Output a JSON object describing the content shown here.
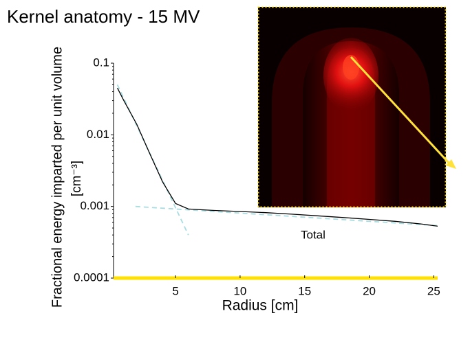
{
  "chart_data": {
    "type": "line",
    "title": "Kernel anatomy  -  15 MV",
    "y_label": "Fractional energy imparted per unit volume",
    "y_unit": "[cm⁻³]",
    "x_label": "Radius  [cm]",
    "log_y": true,
    "xlim": [
      0.2,
      25.3
    ],
    "xticks": [
      5,
      10,
      15,
      20,
      25
    ],
    "ylim": [
      0.0001,
      0.1
    ],
    "yticks": [
      0.1,
      0.01,
      0.001,
      0.0001
    ],
    "series": [
      {
        "name": "Total",
        "color": "#000000",
        "x": [
          0.5,
          1,
          2,
          3,
          4,
          5,
          6,
          8,
          10,
          12,
          14,
          16,
          18,
          20,
          22,
          24,
          25.3
        ],
        "values": [
          0.045,
          0.03,
          0.014,
          0.0055,
          0.0022,
          0.0011,
          0.00092,
          0.00088,
          0.00085,
          0.00082,
          0.00078,
          0.00074,
          0.0007,
          0.00066,
          0.00062,
          0.00057,
          0.00053
        ]
      },
      {
        "color": "#a8dce0",
        "dashed": true,
        "x": [
          0.5,
          6
        ],
        "values": [
          0.05,
          0.0004
        ]
      },
      {
        "color": "#a8dce0",
        "dashed": true,
        "x": [
          1.9,
          25.3
        ],
        "values": [
          0.001,
          0.00054
        ]
      }
    ]
  }
}
